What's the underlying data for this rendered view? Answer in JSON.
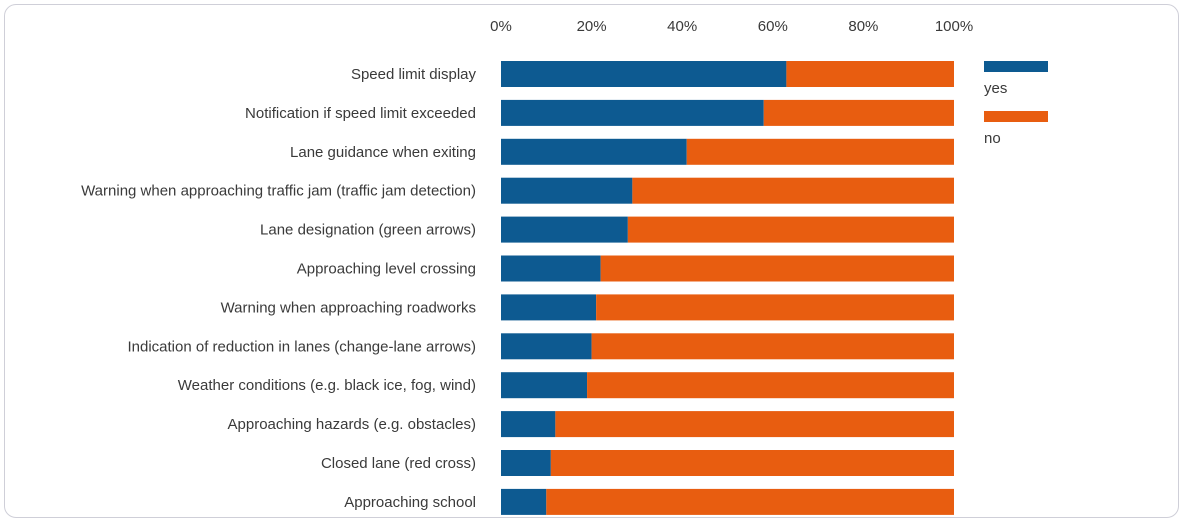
{
  "chart_data": {
    "type": "bar",
    "stacked": true,
    "percent": true,
    "orientation": "horizontal",
    "categories": [
      "Speed limit display",
      "Notification if speed limit exceeded",
      "Lane guidance when exiting",
      "Warning when approaching traffic jam (traffic jam detection)",
      "Lane designation (green arrows)",
      "Approaching level crossing",
      "Warning when approaching roadworks",
      "Indication of reduction in lanes (change-lane arrows)",
      "Weather conditions (e.g. black ice, fog, wind)",
      "Approaching hazards (e.g. obstacles)",
      "Closed lane (red cross)",
      "Approaching school"
    ],
    "series": [
      {
        "name": "yes",
        "color": "#0d5a91",
        "values": [
          63,
          58,
          41,
          29,
          28,
          22,
          21,
          20,
          19,
          12,
          11,
          10
        ]
      },
      {
        "name": "no",
        "color": "#e85d10",
        "values": [
          37,
          42,
          59,
          71,
          72,
          78,
          79,
          80,
          81,
          88,
          89,
          90
        ]
      }
    ],
    "xlim": [
      0,
      100
    ],
    "xticks": [
      "0%",
      "20%",
      "40%",
      "60%",
      "80%",
      "100%"
    ],
    "xaxis_position": "top",
    "grid": false,
    "legend_position": "right"
  }
}
